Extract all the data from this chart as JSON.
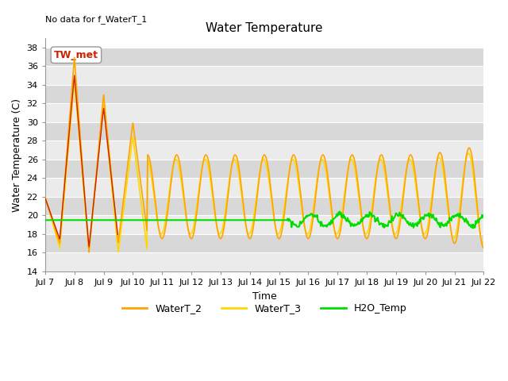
{
  "title": "Water Temperature",
  "xlabel": "Time",
  "ylabel": "Water Temperature (C)",
  "annotation": "No data for f_WaterT_1",
  "legend_label": "TW_met",
  "ylim": [
    14,
    39
  ],
  "yticks": [
    14,
    16,
    18,
    20,
    22,
    24,
    26,
    28,
    30,
    32,
    34,
    36,
    38
  ],
  "xtick_labels": [
    "Jul 7",
    "Jul 8",
    "Jul 9",
    "Jul 10",
    "Jul 11",
    "Jul 12",
    "Jul 13",
    "Jul 14",
    "Jul 15",
    "Jul 16",
    "Jul 17",
    "Jul 18",
    "Jul 19",
    "Jul 20",
    "Jul 21",
    "Jul 22"
  ],
  "color_WaterT_2": "#FFA500",
  "color_WaterT_3": "#FFD700",
  "color_H2O_Temp": "#00DD00",
  "color_TW_met": "#CC2200",
  "bg_band_light": "#EBEBEB",
  "bg_band_dark": "#D8D8D8",
  "n_days": 15,
  "pts_per_day": 48
}
